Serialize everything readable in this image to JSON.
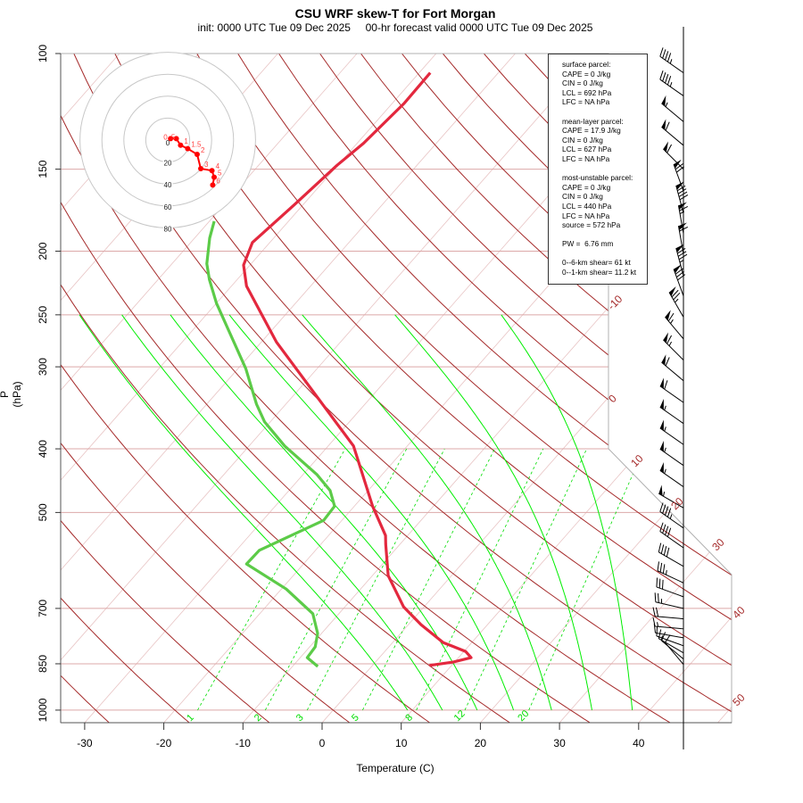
{
  "title": "CSU WRF skew-T for Fort Morgan",
  "subtitle": "init: 0000 UTC Tue 09 Dec 2025     00-hr forecast valid 0000 UTC Tue 09 Dec 2025",
  "info_box": [
    "surface parcel:",
    "CAPE = 0 J/kg",
    "CIN = 0 J/kg",
    "LCL = 692 hPa",
    "LFC = NA hPa",
    "",
    "mean-layer parcel:",
    "CAPE = 17.9 J/kg",
    "CIN = 0 J/kg",
    "LCL = 627 hPa",
    "LFC = NA hPa",
    "",
    "most-unstable parcel:",
    "CAPE = 0 J/kg",
    "CIN = 0 J/kg",
    "LCL = 440 hPa",
    "LFC = NA hPa",
    "source = 572 hPa",
    "",
    "PW =  6.76 mm",
    "",
    "0--6-km shear= 61 kt",
    "0--1-km shear= 11.2 kt"
  ],
  "chart_data": {
    "type": "skew-T log-P",
    "xlabel": "Temperature (C)",
    "ylabel": "P (hPa)",
    "x_ticks": [
      -30,
      -20,
      -10,
      0,
      10,
      20,
      30,
      40
    ],
    "y_ticks": [
      100,
      150,
      200,
      250,
      300,
      400,
      500,
      700,
      850,
      1000
    ],
    "y_scale": "log",
    "ylim": [
      1050,
      100
    ],
    "isotherm_labels": [
      "-10",
      "0",
      "10",
      "20",
      "30",
      "40",
      "50"
    ],
    "mixing_ratio_labels": [
      "1",
      "2",
      "3",
      "5",
      "8",
      "12",
      "20"
    ],
    "mixing_ratios_gkg": [
      1,
      2,
      3,
      5,
      8,
      12,
      20
    ],
    "dry_adiabats_thetaC": {
      "from": -30,
      "to": 180,
      "step": 10
    },
    "isotherms_C": {
      "from": -110,
      "to": 50,
      "step": 10
    },
    "moist_adiabats_T1000_C": [
      9.4,
      13.8,
      18.2,
      22.8,
      27.6,
      32.7,
      37.8
    ],
    "colors": {
      "temperature": "#e3283e",
      "dewpoint": "#5ccb48",
      "dry_adiabat": "#a52a2a",
      "isotherm": "#e8c4c4",
      "moist_adiabat": "#00ee00",
      "mixing_ratio": "#00dd00",
      "hodograph": "#ff0000"
    },
    "series": [
      {
        "name": "temperature",
        "points": [
          {
            "p": 855,
            "t": 7.2
          },
          {
            "p": 845,
            "t": 9.8
          },
          {
            "p": 832,
            "t": 11.6
          },
          {
            "p": 814,
            "t": 10.2
          },
          {
            "p": 789,
            "t": 6.4
          },
          {
            "p": 741,
            "t": 1.6
          },
          {
            "p": 696,
            "t": -2.6
          },
          {
            "p": 624,
            "t": -8.0
          },
          {
            "p": 559,
            "t": -11.8
          },
          {
            "p": 542,
            "t": -12.8
          },
          {
            "p": 489,
            "t": -17.7
          },
          {
            "p": 396,
            "t": -26.8
          },
          {
            "p": 275,
            "t": -48.1
          },
          {
            "p": 226,
            "t": -58.1
          },
          {
            "p": 210,
            "t": -60.8
          },
          {
            "p": 194,
            "t": -62.2
          },
          {
            "p": 170,
            "t": -61.1
          },
          {
            "p": 148,
            "t": -60.1
          },
          {
            "p": 137,
            "t": -59.2
          },
          {
            "p": 119,
            "t": -58.5
          },
          {
            "p": 107,
            "t": -58.6
          }
        ]
      },
      {
        "name": "dewpoint",
        "points": [
          {
            "p": 858,
            "t": -6.8
          },
          {
            "p": 832,
            "t": -9.1
          },
          {
            "p": 801,
            "t": -9.3
          },
          {
            "p": 764,
            "t": -10.5
          },
          {
            "p": 713,
            "t": -13.3
          },
          {
            "p": 654,
            "t": -19.4
          },
          {
            "p": 599,
            "t": -27.2
          },
          {
            "p": 571,
            "t": -27.1
          },
          {
            "p": 514,
            "t": -22.3
          },
          {
            "p": 489,
            "t": -22.5
          },
          {
            "p": 463,
            "t": -24.8
          },
          {
            "p": 438,
            "t": -28.2
          },
          {
            "p": 396,
            "t": -35.5
          },
          {
            "p": 364,
            "t": -40.7
          },
          {
            "p": 342,
            "t": -43.7
          },
          {
            "p": 302,
            "t": -49.0
          },
          {
            "p": 240,
            "t": -60.0
          },
          {
            "p": 221,
            "t": -63.5
          },
          {
            "p": 209,
            "t": -65.6
          },
          {
            "p": 191,
            "t": -68.1
          },
          {
            "p": 180,
            "t": -69.4
          }
        ]
      }
    ],
    "winds": [
      {
        "p": 107,
        "dir": 305,
        "kt": 45
      },
      {
        "p": 116,
        "dir": 305,
        "kt": 45
      },
      {
        "p": 127,
        "dir": 310,
        "kt": 55
      },
      {
        "p": 138,
        "dir": 310,
        "kt": 60
      },
      {
        "p": 150,
        "dir": 315,
        "kt": 60
      },
      {
        "p": 162,
        "dir": 340,
        "kt": 70
      },
      {
        "p": 175,
        "dir": 345,
        "kt": 90
      },
      {
        "p": 188,
        "dir": 350,
        "kt": 65
      },
      {
        "p": 202,
        "dir": 350,
        "kt": 60
      },
      {
        "p": 218,
        "dir": 345,
        "kt": 85
      },
      {
        "p": 234,
        "dir": 340,
        "kt": 80
      },
      {
        "p": 252,
        "dir": 330,
        "kt": 75
      },
      {
        "p": 272,
        "dir": 320,
        "kt": 65
      },
      {
        "p": 293,
        "dir": 315,
        "kt": 65
      },
      {
        "p": 315,
        "dir": 310,
        "kt": 60
      },
      {
        "p": 340,
        "dir": 305,
        "kt": 60
      },
      {
        "p": 366,
        "dir": 305,
        "kt": 55
      },
      {
        "p": 394,
        "dir": 305,
        "kt": 55
      },
      {
        "p": 424,
        "dir": 305,
        "kt": 55
      },
      {
        "p": 457,
        "dir": 305,
        "kt": 55
      },
      {
        "p": 492,
        "dir": 300,
        "kt": 55
      },
      {
        "p": 528,
        "dir": 305,
        "kt": 45
      },
      {
        "p": 566,
        "dir": 305,
        "kt": 40
      },
      {
        "p": 604,
        "dir": 300,
        "kt": 40
      },
      {
        "p": 640,
        "dir": 295,
        "kt": 35
      },
      {
        "p": 672,
        "dir": 290,
        "kt": 30
      },
      {
        "p": 700,
        "dir": 283,
        "kt": 25
      },
      {
        "p": 726,
        "dir": 275,
        "kt": 20
      },
      {
        "p": 752,
        "dir": 275,
        "kt": 15
      },
      {
        "p": 776,
        "dir": 280,
        "kt": 12
      },
      {
        "p": 798,
        "dir": 290,
        "kt": 12
      },
      {
        "p": 818,
        "dir": 300,
        "kt": 14
      },
      {
        "p": 836,
        "dir": 310,
        "kt": 12
      },
      {
        "p": 852,
        "dir": 320,
        "kt": 10
      }
    ],
    "hodograph": {
      "ring_labels": [
        "0",
        "20",
        "40",
        "60",
        "80"
      ],
      "ring_values_kt": [
        20,
        40,
        60,
        80
      ],
      "points": [
        {
          "label": "0",
          "u": 2.6,
          "v": 1.3
        },
        {
          "label": ".5",
          "u": 7.8,
          "v": 1.3
        },
        {
          "label": "1",
          "u": 11.7,
          "v": -4.7
        },
        {
          "label": "1.5",
          "u": 18.2,
          "v": -7.8
        },
        {
          "label": "2",
          "u": 26.8,
          "v": -13
        },
        {
          "label": "3",
          "u": 30.1,
          "v": -26
        },
        {
          "label": "4",
          "u": 40.3,
          "v": -27.8
        },
        {
          "label": "5",
          "u": 42.3,
          "v": -33.8
        },
        {
          "label": "6",
          "u": 41,
          "v": -41
        }
      ]
    }
  }
}
